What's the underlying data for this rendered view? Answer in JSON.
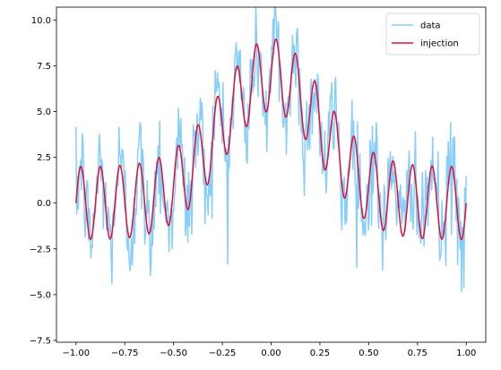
{
  "chart_data": {
    "type": "line",
    "title": "",
    "xlabel": "",
    "ylabel": "",
    "xlim": [
      -1.1,
      1.1
    ],
    "ylim": [
      -7.6,
      10.7
    ],
    "xticks": [
      -1.0,
      -0.75,
      -0.5,
      -0.25,
      0.0,
      0.25,
      0.5,
      0.75,
      1.0
    ],
    "xtick_labels": [
      "−1.00",
      "−0.75",
      "−0.50",
      "−0.25",
      "0.00",
      "0.25",
      "0.50",
      "0.75",
      "1.00"
    ],
    "yticks": [
      -7.5,
      -5.0,
      -2.5,
      0.0,
      2.5,
      5.0,
      7.5,
      10.0
    ],
    "ytick_labels": [
      "−7.5",
      "−5.0",
      "−2.5",
      "0.0",
      "2.5",
      "5.0",
      "7.5",
      "10.0"
    ],
    "grid": false,
    "legend_position": "top-right",
    "series": [
      {
        "name": "data",
        "color": "#87CEFA",
        "x_range": [
          -1.0,
          1.0
        ],
        "points": 500,
        "model": "7*exp(-x^2/(2*0.25^2)) + 2*sin(2*pi*10*x) + gaussian noise",
        "noise_sigma": 1.5
      },
      {
        "name": "injection",
        "color": "#DC143C",
        "x_range": [
          -1.0,
          1.0
        ],
        "points": 500,
        "model": "7*exp(-x^2/(2*0.25^2)) + 2*sin(2*pi*10*x)"
      }
    ]
  }
}
